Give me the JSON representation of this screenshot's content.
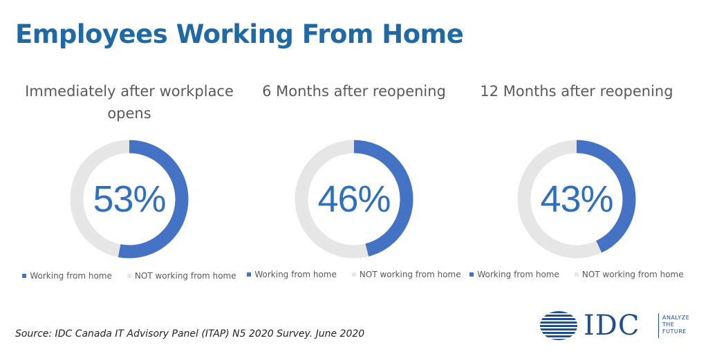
{
  "title": "Employees Working From Home",
  "source": "Source: IDC Canada IT Advisory Panel (ITAP) N5 2020 Survey. June 2020",
  "logo": {
    "text": "IDC",
    "tagline": [
      "ANALYZE",
      "THE",
      "FUTURE"
    ]
  },
  "colors": {
    "accent": "#4472c4",
    "rest": "#e6e6e6",
    "title": "#1f6aa5"
  },
  "chart_data": [
    {
      "type": "pie",
      "title_lines": [
        "Immediately after workplace",
        "opens"
      ],
      "label": "53%",
      "categories": [
        "Working from home",
        "NOT working from home"
      ],
      "values": [
        53,
        47
      ]
    },
    {
      "type": "pie",
      "title_lines": [
        "6 Months after reopening"
      ],
      "label": "46%",
      "categories": [
        "Working from home",
        "NOT working from home"
      ],
      "values": [
        46,
        54
      ]
    },
    {
      "type": "pie",
      "title_lines": [
        "12 Months after reopening"
      ],
      "label": "43%",
      "categories": [
        "Working from home",
        "NOT working from home"
      ],
      "values": [
        43,
        57
      ]
    }
  ]
}
